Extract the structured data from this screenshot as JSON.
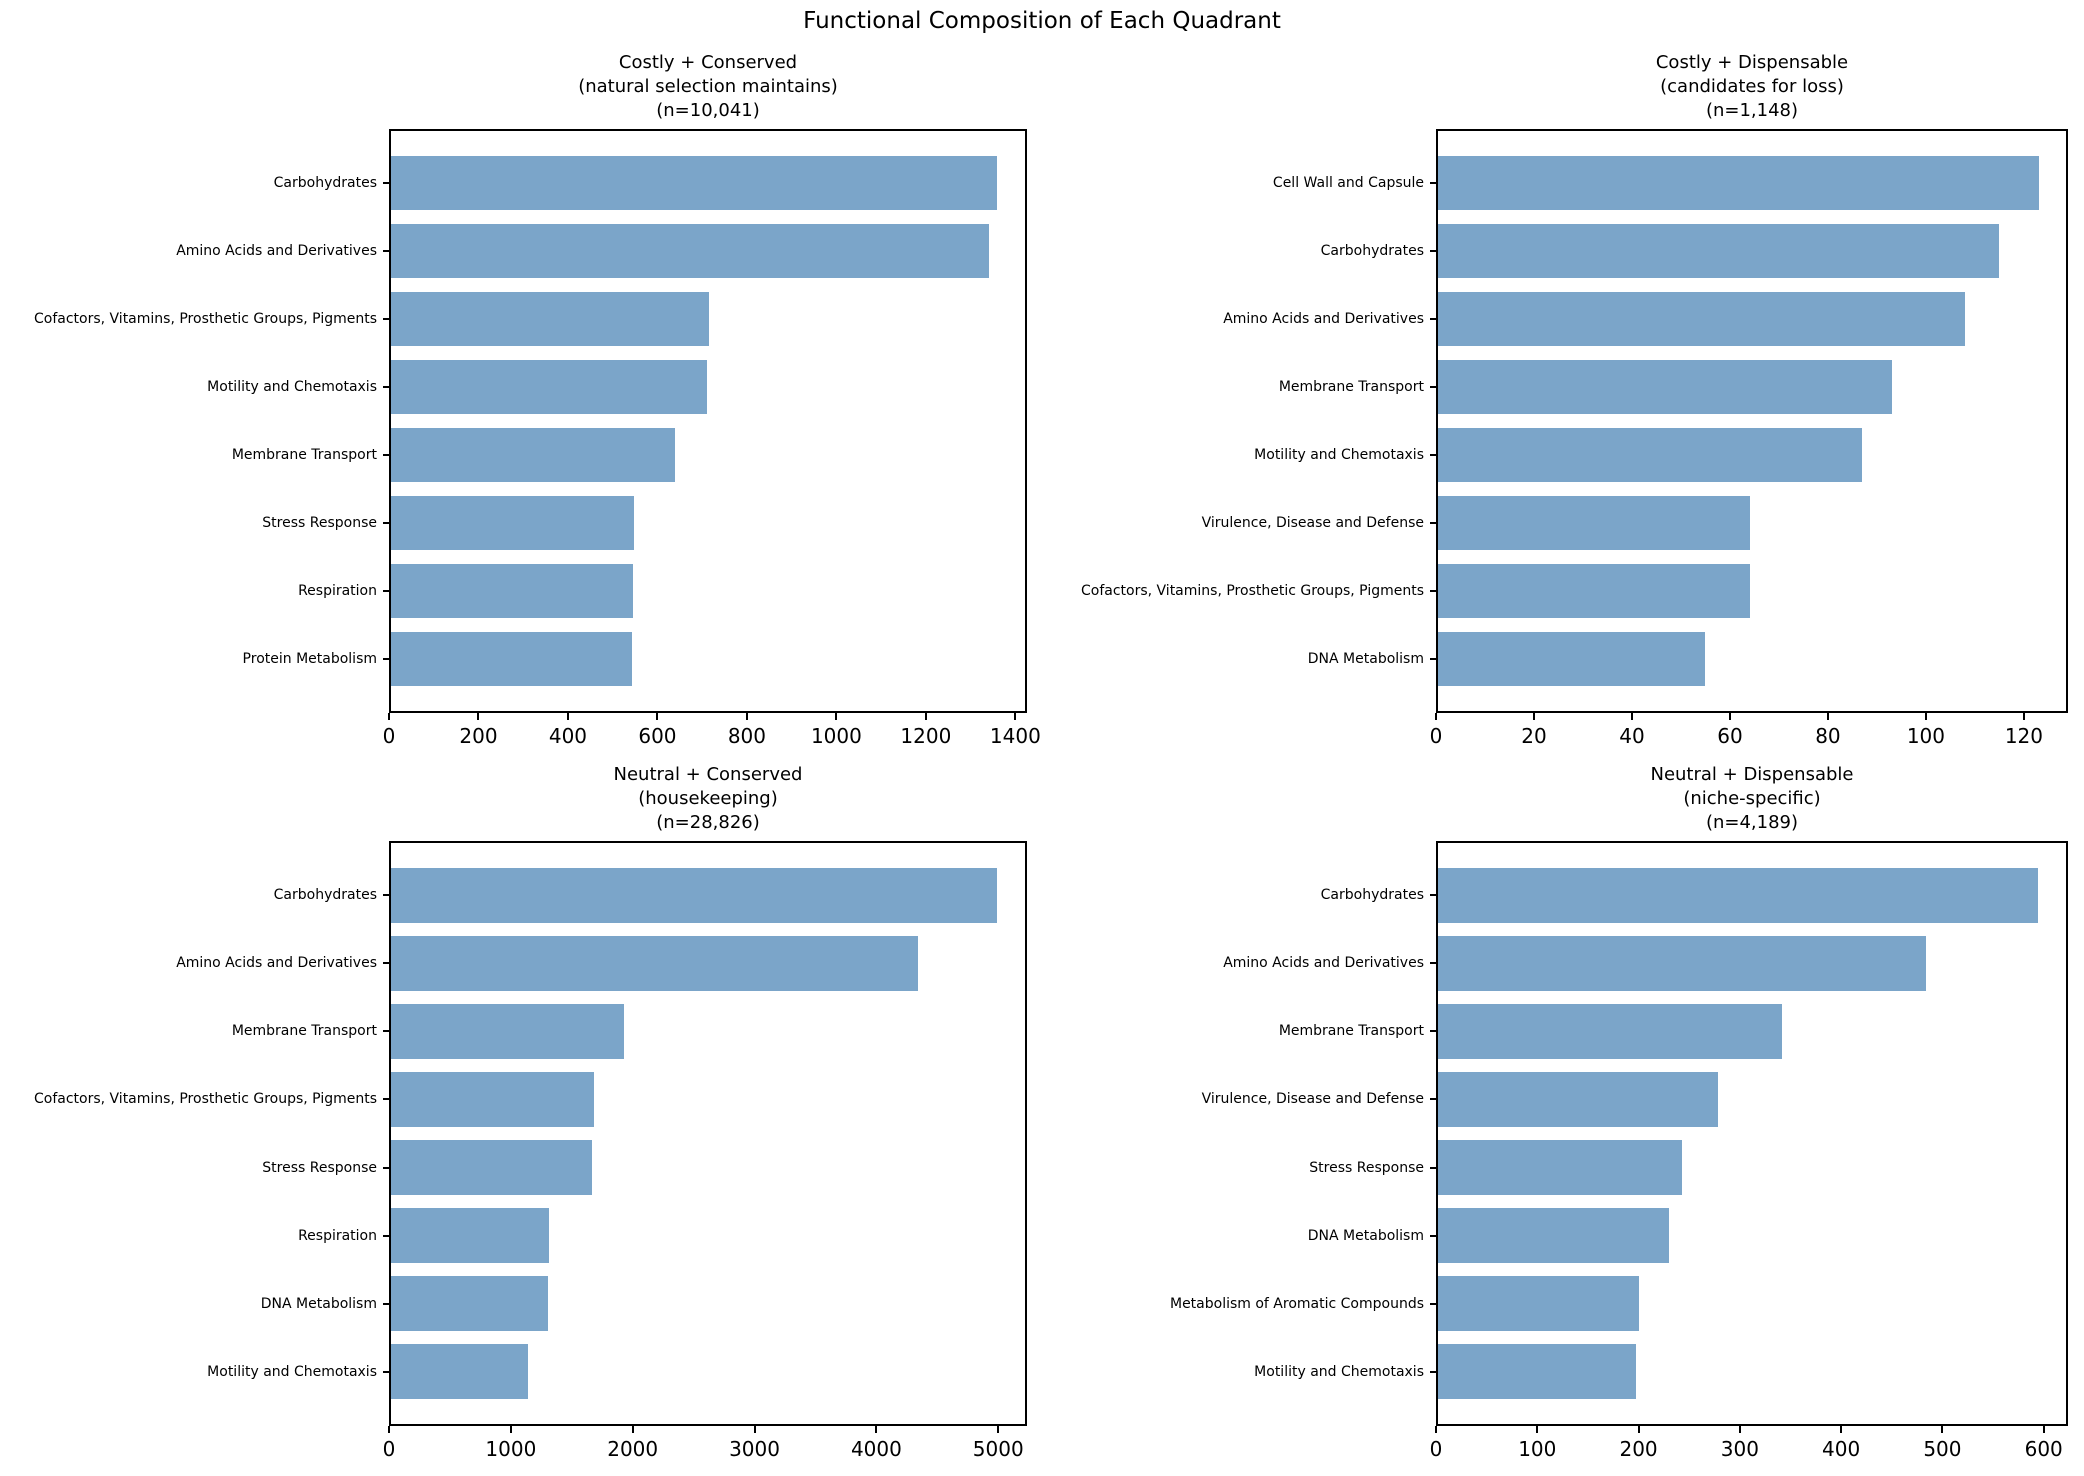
{
  "figure": {
    "suptitle": "Functional Composition of Each Quadrant",
    "bar_color": "#7ba5c9",
    "axis_color": "#000000",
    "background": "#ffffff"
  },
  "chart_data": [
    {
      "type": "bar",
      "orientation": "horizontal",
      "title": "Costly + Conserved (natural selection maintains) (n=10,041)",
      "title_lines": [
        "Costly + Conserved",
        "(natural selection maintains)",
        "(n=10,041)"
      ],
      "n_label": "n=10,041",
      "categories": [
        "Carbohydrates",
        "Amino Acids and Derivatives",
        "Cofactors, Vitamins, Prosthetic Groups, Pigments",
        "Motility and Chemotaxis",
        "Membrane Transport",
        "Stress Response",
        "Respiration",
        "Protein Metabolism"
      ],
      "values": [
        1358,
        1340,
        715,
        710,
        640,
        547,
        545,
        543
      ],
      "xticks": [
        0,
        200,
        400,
        600,
        800,
        1000,
        1200,
        1400
      ],
      "xlim": [
        0,
        1426
      ],
      "grid": false,
      "legend": null
    },
    {
      "type": "bar",
      "orientation": "horizontal",
      "title": "Costly + Dispensable (candidates for loss) (n=1,148)",
      "title_lines": [
        "Costly + Dispensable",
        "(candidates for loss)",
        "(n=1,148)"
      ],
      "n_label": "n=1,148",
      "categories": [
        "Cell Wall and Capsule",
        "Carbohydrates",
        "Amino Acids and Derivatives",
        "Membrane Transport",
        "Motility and Chemotaxis",
        "Virulence, Disease and Defense",
        "Cofactors, Vitamins, Prosthetic Groups, Pigments",
        "DNA Metabolism"
      ],
      "values": [
        123,
        115,
        108,
        93,
        87,
        64,
        64,
        55
      ],
      "xticks": [
        0,
        20,
        40,
        60,
        80,
        100,
        120
      ],
      "xlim": [
        0,
        129
      ],
      "grid": false,
      "legend": null
    },
    {
      "type": "bar",
      "orientation": "horizontal",
      "title": "Neutral + Conserved (housekeeping) (n=28,826)",
      "title_lines": [
        "Neutral + Conserved",
        "(housekeeping)",
        "(n=28,826)"
      ],
      "n_label": "n=28,826",
      "categories": [
        "Carbohydrates",
        "Amino Acids and Derivatives",
        "Membrane Transport",
        "Cofactors, Vitamins, Prosthetic Groups, Pigments",
        "Stress Response",
        "Respiration",
        "DNA Metabolism",
        "Motility and Chemotaxis"
      ],
      "values": [
        4987,
        4342,
        1927,
        1680,
        1667,
        1310,
        1301,
        1141
      ],
      "xticks": [
        0,
        1000,
        2000,
        3000,
        4000,
        5000
      ],
      "xlim": [
        0,
        5236
      ],
      "grid": false,
      "legend": null
    },
    {
      "type": "bar",
      "orientation": "horizontal",
      "title": "Neutral + Dispensable (niche-specific) (n=4,189)",
      "title_lines": [
        "Neutral + Dispensable",
        "(niche-specific)",
        "(n=4,189)"
      ],
      "n_label": "n=4,189",
      "categories": [
        "Carbohydrates",
        "Amino Acids and Derivatives",
        "Membrane Transport",
        "Virulence, Disease and Defense",
        "Stress Response",
        "DNA Metabolism",
        "Metabolism of Aromatic Compounds",
        "Motility and Chemotaxis"
      ],
      "values": [
        594,
        484,
        342,
        278,
        243,
        230,
        200,
        197
      ],
      "xticks": [
        0,
        100,
        200,
        300,
        400,
        500,
        600
      ],
      "xlim": [
        0,
        624
      ],
      "grid": false,
      "legend": null
    }
  ]
}
